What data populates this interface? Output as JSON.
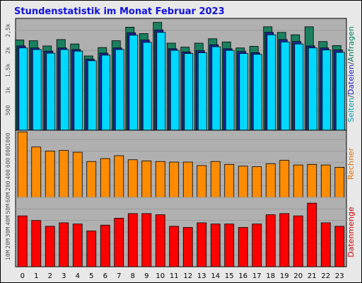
{
  "chart_data": {
    "type": "bar",
    "title": "Stundenstatistik im Monat Februar 2023",
    "categories": [
      "0",
      "1",
      "2",
      "3",
      "4",
      "5",
      "6",
      "7",
      "8",
      "9",
      "10",
      "11",
      "12",
      "13",
      "14",
      "15",
      "16",
      "17",
      "18",
      "19",
      "20",
      "21",
      "22",
      "23"
    ],
    "panels": [
      {
        "name": "hits",
        "ylabel_parts": [
          {
            "text": "Seiten",
            "color": "#00a0b0"
          },
          {
            "text": "/",
            "color": "#444444"
          },
          {
            "text": "Dateien",
            "color": "#2020c0"
          },
          {
            "text": "/",
            "color": "#444444"
          },
          {
            "text": "Anfragen",
            "color": "#008060"
          }
        ],
        "yticks": [
          {
            "value": 500,
            "label": "500"
          },
          {
            "value": 1000,
            "label": "1k"
          },
          {
            "value": 1500,
            "label": "1,5k"
          },
          {
            "value": 2000,
            "label": "2k"
          },
          {
            "value": 2500,
            "label": "2,5k"
          }
        ],
        "ylim": [
          0,
          2800
        ],
        "series": [
          {
            "name": "Anfragen",
            "color": "#1a8060",
            "values": [
              2260,
              2240,
              2110,
              2270,
              2160,
              1860,
              2070,
              2240,
              2580,
              2420,
              2700,
              2180,
              2080,
              2180,
              2290,
              2210,
              2060,
              2100,
              2590,
              2450,
              2390,
              2590,
              2220,
              2120
            ]
          },
          {
            "name": "Dateien",
            "color": "#1a2a9a",
            "values": [
              2110,
              2060,
              1980,
              2060,
              2020,
              1780,
              1930,
              2060,
              2440,
              2260,
              2510,
              2040,
              1960,
              1990,
              2140,
              2040,
              1970,
              1940,
              2450,
              2270,
              2220,
              2110,
              2060,
              2010
            ]
          },
          {
            "name": "Seiten",
            "color": "#00d8ff",
            "values": [
              2060,
              2020,
              1930,
              2020,
              1980,
              1740,
              1880,
              2020,
              2380,
              2200,
              2450,
              2000,
              1920,
              1940,
              2090,
              2000,
              1920,
              1900,
              2390,
              2210,
              2160,
              2060,
              2010,
              1950
            ]
          }
        ]
      },
      {
        "name": "visits",
        "ylabel_parts": [
          {
            "text": "Rechner",
            "color": "#e07000"
          }
        ],
        "yticks": [
          {
            "value": 200,
            "label": "200"
          },
          {
            "value": 400,
            "label": "400"
          },
          {
            "value": 600,
            "label": "600"
          },
          {
            "value": 800,
            "label": "800"
          },
          {
            "value": 1000,
            "label": "1000"
          }
        ],
        "ylim": [
          0,
          1160
        ],
        "series": [
          {
            "name": "Rechner",
            "color": "#ff8c00",
            "values": [
              1130,
              870,
              800,
              810,
              780,
              620,
              670,
              720,
              650,
              630,
              620,
              610,
              610,
              550,
              620,
              570,
              540,
              530,
              580,
              640,
              560,
              570,
              560,
              520
            ]
          }
        ]
      },
      {
        "name": "volume",
        "ylabel_parts": [
          {
            "text": "Datenmenge",
            "color": "#d00000"
          }
        ],
        "yticks": [
          {
            "value": 10,
            "label": "10M"
          },
          {
            "value": 20,
            "label": "20M"
          },
          {
            "value": 30,
            "label": "30M"
          },
          {
            "value": 40,
            "label": "40M"
          },
          {
            "value": 50,
            "label": "50M"
          },
          {
            "value": 60,
            "label": "60M"
          }
        ],
        "ylim": [
          0,
          60
        ],
        "series": [
          {
            "name": "Datenmenge",
            "color": "#ff0000",
            "values": [
              44,
              40,
              35,
              38,
              37,
              31,
              36,
              42,
              46,
              46,
              45,
              35,
              34,
              38,
              37,
              37,
              34,
              37,
              45,
              46,
              44,
              55,
              38,
              35
            ]
          }
        ]
      }
    ],
    "colors": {
      "background": "#e8e8e8",
      "plot_background": "#b0b0b0",
      "title": "#1010e0",
      "frame": "#000000"
    }
  }
}
